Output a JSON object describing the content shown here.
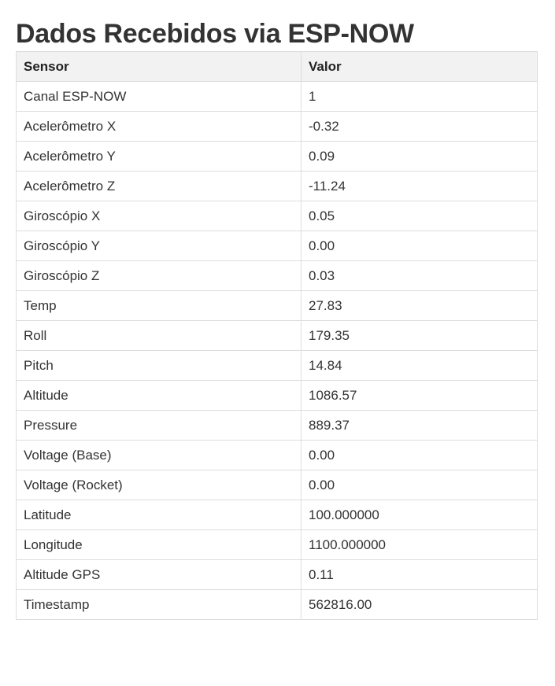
{
  "page": {
    "title": "Dados Recebidos via ESP-NOW"
  },
  "table": {
    "headers": [
      "Sensor",
      "Valor"
    ],
    "rows": [
      {
        "sensor": "Canal ESP-NOW",
        "value": "1"
      },
      {
        "sensor": "Acelerômetro X",
        "value": "-0.32"
      },
      {
        "sensor": "Acelerômetro Y",
        "value": "0.09"
      },
      {
        "sensor": "Acelerômetro Z",
        "value": "-11.24"
      },
      {
        "sensor": "Giroscópio X",
        "value": "0.05"
      },
      {
        "sensor": "Giroscópio Y",
        "value": "0.00"
      },
      {
        "sensor": "Giroscópio Z",
        "value": "0.03"
      },
      {
        "sensor": "Temp",
        "value": "27.83"
      },
      {
        "sensor": "Roll",
        "value": "179.35"
      },
      {
        "sensor": "Pitch",
        "value": "14.84"
      },
      {
        "sensor": "Altitude",
        "value": "1086.57"
      },
      {
        "sensor": "Pressure",
        "value": "889.37"
      },
      {
        "sensor": "Voltage (Base)",
        "value": "0.00"
      },
      {
        "sensor": "Voltage (Rocket)",
        "value": "0.00"
      },
      {
        "sensor": "Latitude",
        "value": "100.000000"
      },
      {
        "sensor": "Longitude",
        "value": "1100.000000"
      },
      {
        "sensor": "Altitude GPS",
        "value": "0.11"
      },
      {
        "sensor": "Timestamp",
        "value": "562816.00"
      }
    ]
  }
}
